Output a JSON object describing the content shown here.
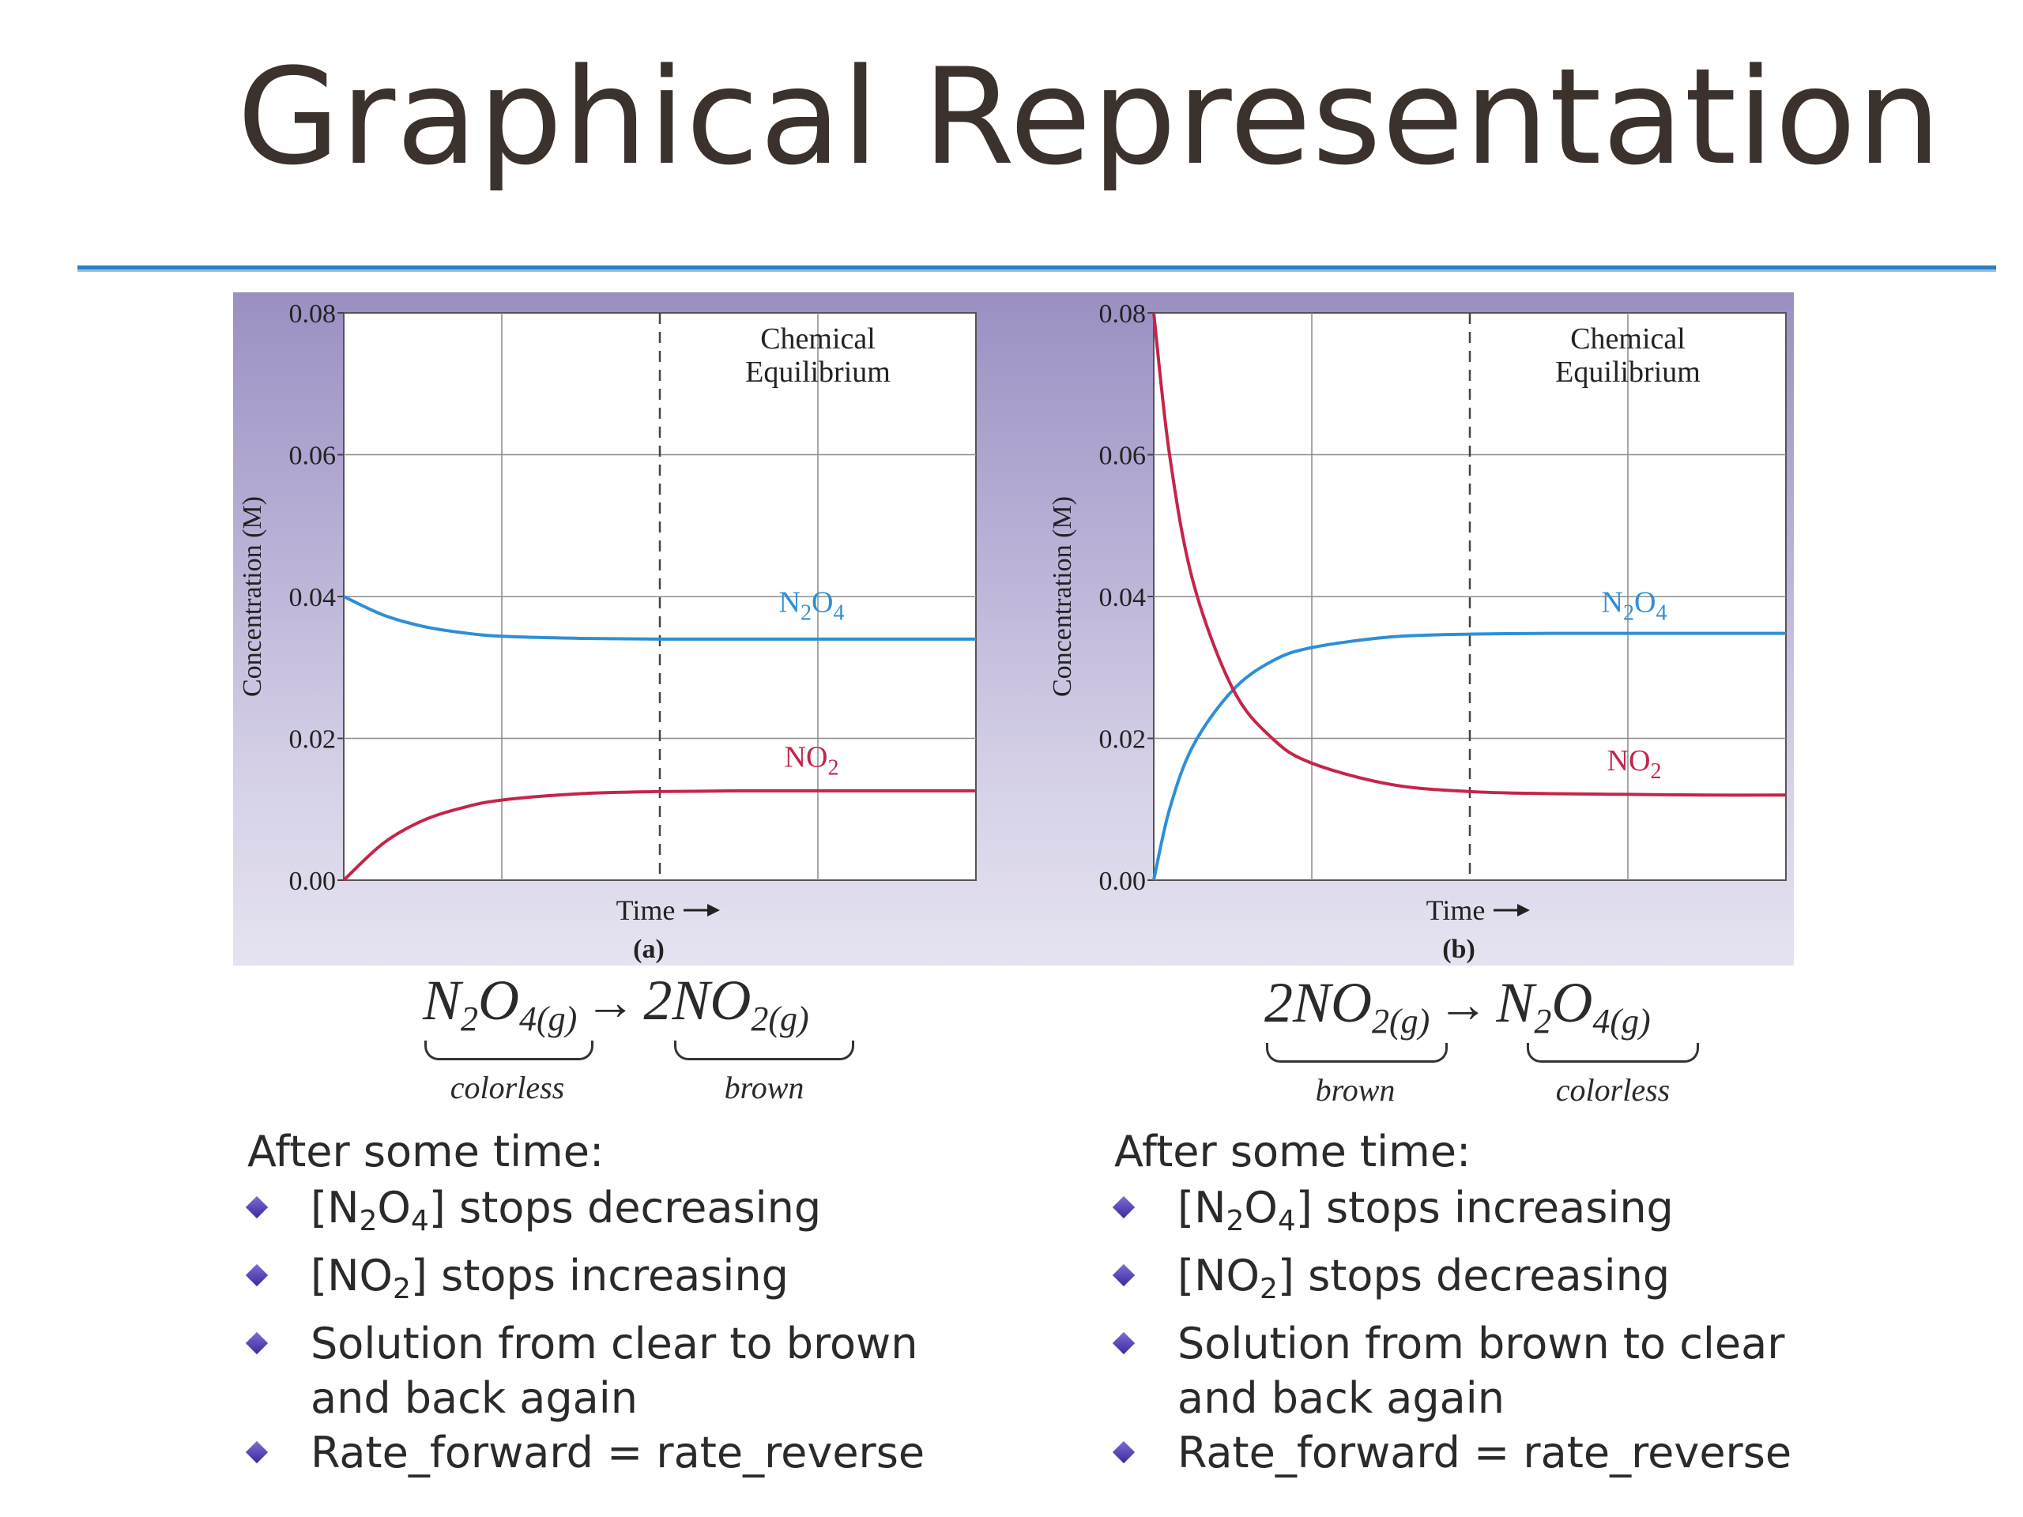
{
  "slide": {
    "title": "Graphical Representation"
  },
  "chart_data": [
    {
      "type": "line",
      "panel_label": "(a)",
      "xlabel": "Time",
      "ylabel": "Concentration (M)",
      "ylim": [
        0,
        0.08
      ],
      "y_ticks": [
        "0.00",
        "0.02",
        "0.04",
        "0.06",
        "0.08"
      ],
      "x_range": [
        0,
        4
      ],
      "equilibrium_marker_x": 2,
      "annotation": [
        "Chemical",
        "Equilibrium"
      ],
      "series": [
        {
          "name": "N2O4",
          "label_main": "N",
          "label_sub1": "2",
          "label_mid": "O",
          "label_sub2": "4",
          "color": "#2e8fd6",
          "x": [
            0,
            0.25,
            0.5,
            0.75,
            1.0,
            1.5,
            2.0,
            2.5,
            3.0,
            3.5,
            4.0
          ],
          "values": [
            0.04,
            0.0374,
            0.0358,
            0.0349,
            0.0344,
            0.0341,
            0.034,
            0.034,
            0.034,
            0.034,
            0.034
          ]
        },
        {
          "name": "NO2",
          "label_main": "NO",
          "label_sub1": "2",
          "label_mid": "",
          "label_sub2": "",
          "color": "#c4254a",
          "x": [
            0,
            0.25,
            0.5,
            0.75,
            1.0,
            1.5,
            2.0,
            2.5,
            3.0,
            3.5,
            4.0
          ],
          "values": [
            0.0,
            0.0052,
            0.0084,
            0.0102,
            0.0113,
            0.0122,
            0.0125,
            0.0126,
            0.0126,
            0.0126,
            0.0126
          ]
        }
      ]
    },
    {
      "type": "line",
      "panel_label": "(b)",
      "xlabel": "Time",
      "ylabel": "Concentration (M)",
      "ylim": [
        0,
        0.08
      ],
      "y_ticks": [
        "0.00",
        "0.02",
        "0.04",
        "0.06",
        "0.08"
      ],
      "x_range": [
        0,
        4
      ],
      "equilibrium_marker_x": 2,
      "annotation": [
        "Chemical",
        "Equilibrium"
      ],
      "series": [
        {
          "name": "N2O4",
          "label_main": "N",
          "label_sub1": "2",
          "label_mid": "O",
          "label_sub2": "4",
          "color": "#2e8fd6",
          "x": [
            0,
            0.1,
            0.25,
            0.5,
            0.75,
            1.0,
            1.5,
            2.0,
            2.5,
            3.0,
            3.5,
            4.0
          ],
          "values": [
            0.0,
            0.01,
            0.019,
            0.0268,
            0.0309,
            0.0328,
            0.0343,
            0.0347,
            0.0348,
            0.0348,
            0.0348,
            0.0348
          ]
        },
        {
          "name": "NO2",
          "label_main": "NO",
          "label_sub1": "2",
          "label_mid": "",
          "label_sub2": "",
          "color": "#c4254a",
          "x": [
            0,
            0.1,
            0.25,
            0.5,
            0.75,
            1.0,
            1.5,
            2.0,
            2.5,
            3.0,
            3.5,
            4.0
          ],
          "values": [
            0.08,
            0.06,
            0.042,
            0.027,
            0.02,
            0.0165,
            0.0135,
            0.0125,
            0.0122,
            0.0121,
            0.012,
            0.012
          ]
        }
      ]
    }
  ],
  "equations": [
    {
      "left_main": "N",
      "left_sub1": "2",
      "left_mid": "O",
      "left_sub2": "4(g)",
      "arrow": "→",
      "right_main": "2NO",
      "right_sub": "2(g)",
      "left_desc": "colorless",
      "right_desc": "brown"
    },
    {
      "left_main": "2NO",
      "left_sub": "2(g)",
      "arrow": "→",
      "right_main": "N",
      "right_sub1": "2",
      "right_mid": "O",
      "right_sub2": "4(g)",
      "left_desc": "brown",
      "right_desc": "colorless"
    }
  ],
  "notes": [
    {
      "heading": "After some time:",
      "b1_pre": "[N",
      "b1_s1": "2",
      "b1_mid": "O",
      "b1_s2": "4",
      "b1_post": "] stops decreasing",
      "b2_pre": "[NO",
      "b2_s1": "2",
      "b2_post": "] stops increasing",
      "b3": "Solution from clear to brown",
      "b3_cont": "and back again",
      "b4": "Rate_forward = rate_reverse"
    },
    {
      "heading": "After some time:",
      "b1_pre": "[N",
      "b1_s1": "2",
      "b1_mid": "O",
      "b1_s2": "4",
      "b1_post": "] stops increasing",
      "b2_pre": "[NO",
      "b2_s1": "2",
      "b2_post": "] stops decreasing",
      "b3": "Solution from brown to clear",
      "b3_cont": "and back again",
      "b4": "Rate_forward = rate_reverse"
    }
  ]
}
